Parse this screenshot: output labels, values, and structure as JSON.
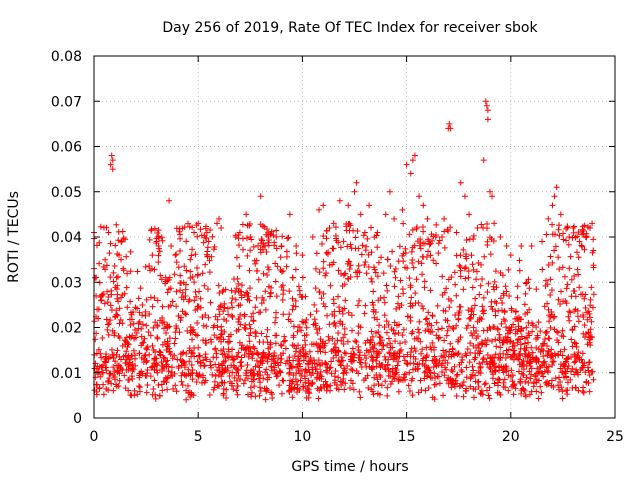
{
  "chart_data": {
    "type": "scatter",
    "title": "Day 256 of 2019, Rate Of TEC Index for receiver sbok",
    "xlabel": "GPS time / hours",
    "ylabel": "ROTI / TECUs",
    "xlim": [
      0,
      25
    ],
    "ylim": [
      0,
      0.08
    ],
    "xticks": [
      "0",
      "5",
      "10",
      "15",
      "20",
      "25"
    ],
    "yticks": [
      "0",
      "0.01",
      "0.02",
      "0.03",
      "0.04",
      "0.05",
      "0.06",
      "0.07",
      "0.08"
    ],
    "grid": true,
    "marker": "+",
    "colors": {
      "series": "#ff0000",
      "grid": "#a0a0a0",
      "axes": "#000000"
    },
    "series": [
      {
        "marker": "+",
        "color": "#ff0000",
        "points": [
          [
            0.0,
            0.041
          ],
          [
            0.0,
            0.033
          ],
          [
            0.05,
            0.031
          ],
          [
            0.1,
            0.027
          ],
          [
            0.15,
            0.024
          ],
          [
            0.2,
            0.022
          ],
          [
            0.7,
            0.041
          ],
          [
            0.8,
            0.056
          ],
          [
            0.85,
            0.058
          ],
          [
            0.9,
            0.057
          ],
          [
            0.9,
            0.055
          ],
          [
            1.2,
            0.036
          ],
          [
            1.3,
            0.035
          ],
          [
            1.4,
            0.033
          ],
          [
            2.8,
            0.036
          ],
          [
            3.0,
            0.039
          ],
          [
            3.1,
            0.038
          ],
          [
            3.6,
            0.048
          ],
          [
            3.7,
            0.038
          ],
          [
            3.9,
            0.036
          ],
          [
            4.8,
            0.041
          ],
          [
            5.0,
            0.043
          ],
          [
            5.5,
            0.039
          ],
          [
            5.9,
            0.043
          ],
          [
            6.0,
            0.044
          ],
          [
            6.1,
            0.042
          ],
          [
            6.8,
            0.04
          ],
          [
            7.0,
            0.041
          ],
          [
            7.3,
            0.045
          ],
          [
            7.5,
            0.04
          ],
          [
            8.0,
            0.049
          ],
          [
            8.2,
            0.038
          ],
          [
            9.0,
            0.038
          ],
          [
            9.4,
            0.045
          ],
          [
            9.7,
            0.038
          ],
          [
            10.0,
            0.036
          ],
          [
            10.5,
            0.04
          ],
          [
            10.8,
            0.046
          ],
          [
            11.0,
            0.047
          ],
          [
            11.3,
            0.042
          ],
          [
            11.5,
            0.043
          ],
          [
            11.8,
            0.048
          ],
          [
            12.2,
            0.047
          ],
          [
            12.5,
            0.05
          ],
          [
            12.6,
            0.052
          ],
          [
            12.8,
            0.045
          ],
          [
            13.0,
            0.041
          ],
          [
            13.2,
            0.047
          ],
          [
            13.6,
            0.041
          ],
          [
            14.0,
            0.045
          ],
          [
            14.2,
            0.05
          ],
          [
            14.4,
            0.044
          ],
          [
            14.8,
            0.046
          ],
          [
            15.0,
            0.056
          ],
          [
            15.2,
            0.054
          ],
          [
            15.3,
            0.057
          ],
          [
            15.4,
            0.058
          ],
          [
            15.6,
            0.049
          ],
          [
            15.8,
            0.047
          ],
          [
            16.0,
            0.044
          ],
          [
            16.4,
            0.04
          ],
          [
            16.7,
            0.04
          ],
          [
            16.8,
            0.044
          ],
          [
            17.0,
            0.064
          ],
          [
            17.05,
            0.065
          ],
          [
            17.1,
            0.064
          ],
          [
            17.4,
            0.041
          ],
          [
            17.6,
            0.052
          ],
          [
            17.8,
            0.049
          ],
          [
            18.0,
            0.045
          ],
          [
            18.4,
            0.042
          ],
          [
            18.7,
            0.057
          ],
          [
            18.8,
            0.07
          ],
          [
            18.85,
            0.069
          ],
          [
            18.9,
            0.068
          ],
          [
            18.9,
            0.066
          ],
          [
            19.0,
            0.05
          ],
          [
            19.1,
            0.049
          ],
          [
            19.2,
            0.043
          ],
          [
            19.5,
            0.04
          ],
          [
            19.8,
            0.038
          ],
          [
            20.0,
            0.036
          ],
          [
            20.5,
            0.038
          ],
          [
            21.0,
            0.038
          ],
          [
            21.5,
            0.039
          ],
          [
            21.8,
            0.044
          ],
          [
            22.0,
            0.047
          ],
          [
            22.1,
            0.049
          ],
          [
            22.2,
            0.051
          ],
          [
            22.4,
            0.045
          ],
          [
            22.8,
            0.04
          ],
          [
            23.0,
            0.042
          ],
          [
            23.3,
            0.039
          ],
          [
            23.6,
            0.04
          ],
          [
            23.8,
            0.042
          ],
          [
            23.9,
            0.043
          ]
        ]
      }
    ]
  }
}
